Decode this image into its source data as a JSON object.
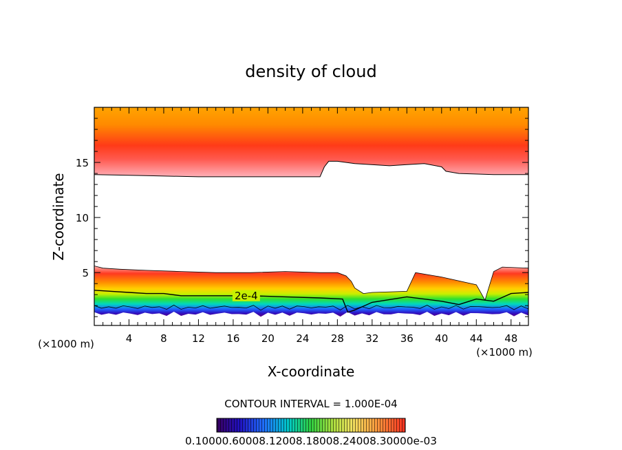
{
  "chart_data": {
    "type": "contour",
    "title": "density of cloud",
    "xlabel": "X-coordinate",
    "ylabel": "Z-coordinate",
    "x_unit": "(×1000 m)",
    "xlim": [
      0,
      50
    ],
    "ylim": [
      0.2,
      20
    ],
    "x_ticks": [
      4,
      8,
      12,
      16,
      20,
      24,
      28,
      32,
      36,
      40,
      44,
      48
    ],
    "y_ticks": [
      5,
      10,
      15
    ],
    "contour_label": "2e-4",
    "contour_interval": "CONTOUR INTERVAL = 1.000E-04",
    "colorbar_labels": [
      "0.1000e-6",
      "0.6000e-4",
      "0.1200e-3",
      "0.1800e-3",
      "0.2400e-3",
      "0.3000e-3"
    ],
    "colorbar_label_strip": "0.10000.60008.12008.18008.24008.30000e-03",
    "colors": {
      "low": "#3a0a60",
      "high": "#ff2a1a",
      "top": "#ffa000"
    },
    "upper_cloud_boundary": {
      "x": [
        0,
        6,
        12,
        18,
        24,
        26,
        26.5,
        27,
        28,
        30,
        34,
        36,
        38,
        40,
        40.5,
        42,
        46,
        50
      ],
      "z": [
        13.9,
        13.8,
        13.7,
        13.7,
        13.7,
        13.7,
        14.6,
        15.1,
        15.1,
        14.9,
        14.7,
        14.8,
        14.9,
        14.6,
        14.2,
        14.0,
        13.9,
        13.9
      ]
    },
    "lower_cloud_top": {
      "x": [
        0,
        1,
        3,
        6,
        10,
        14,
        18,
        22,
        26,
        28,
        29,
        29.6,
        30,
        31,
        32,
        36,
        37,
        40,
        44,
        45,
        46,
        47,
        50
      ],
      "z": [
        5.6,
        5.4,
        5.3,
        5.2,
        5.1,
        5.0,
        5.0,
        5.1,
        5.0,
        5.0,
        4.7,
        4.2,
        3.6,
        3.1,
        3.2,
        3.3,
        5.0,
        4.6,
        3.9,
        2.5,
        5.1,
        5.5,
        5.4
      ]
    },
    "contour_2e4": {
      "x": [
        0,
        2,
        4,
        6,
        8,
        10,
        14,
        18,
        22,
        26,
        28.6,
        29.2,
        30,
        32,
        36,
        40,
        42,
        44,
        46,
        48,
        50
      ],
      "z": [
        3.4,
        3.3,
        3.2,
        3.1,
        3.1,
        2.9,
        2.9,
        2.9,
        2.8,
        2.7,
        2.6,
        1.4,
        1.6,
        2.3,
        2.8,
        2.4,
        2.1,
        2.6,
        2.4,
        3.1,
        3.2
      ]
    }
  }
}
